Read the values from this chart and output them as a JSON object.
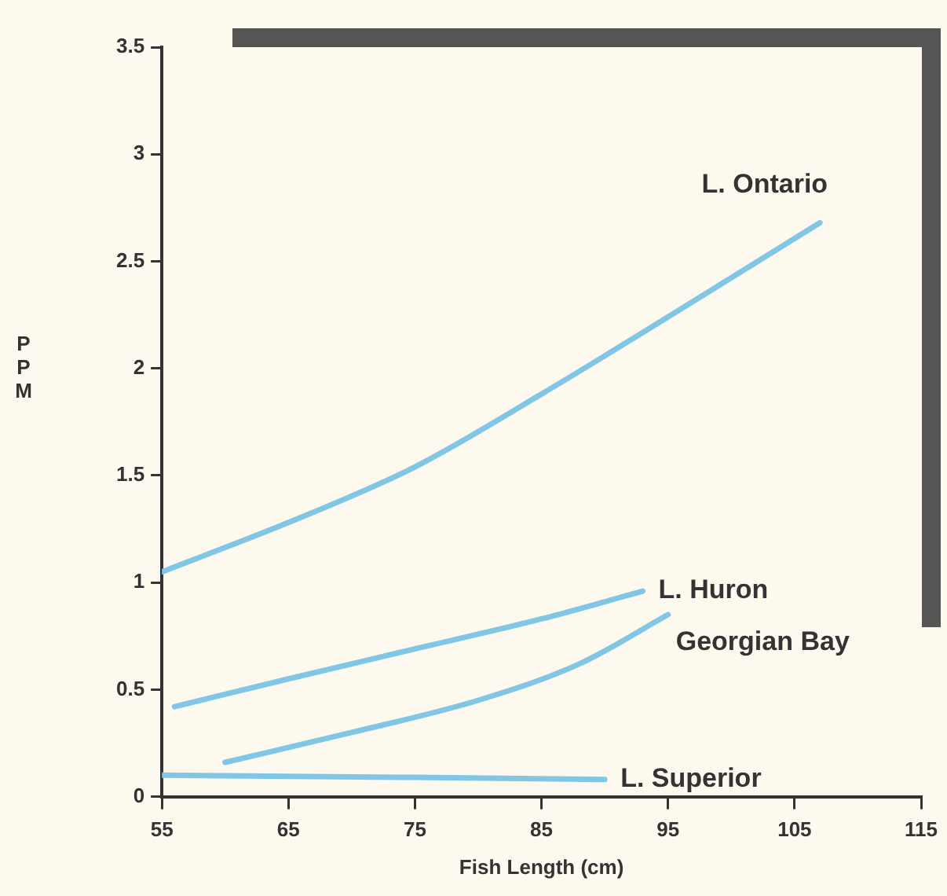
{
  "chart_data": {
    "type": "line",
    "xlabel": "Fish Length (cm)",
    "ylabel": "PPM",
    "xlim": [
      55,
      115
    ],
    "xticks": [
      55,
      65,
      75,
      85,
      95,
      105,
      115
    ],
    "ylim": [
      0,
      3.5
    ],
    "yticks": [
      0,
      0.5,
      1,
      1.5,
      2,
      2.5,
      3,
      3.5
    ],
    "grid": false,
    "legend": false,
    "marker": "none",
    "line_style": "solid",
    "series": [
      {
        "name": "L. Ontario",
        "color": "#82c6e6",
        "x": [
          55,
          65,
          75,
          85,
          95,
          107
        ],
        "values": [
          1.05,
          1.28,
          1.54,
          1.88,
          2.24,
          2.68
        ]
      },
      {
        "name": "L. Huron",
        "color": "#82c6e6",
        "x": [
          56,
          65,
          75,
          85,
          93
        ],
        "values": [
          0.42,
          0.55,
          0.69,
          0.83,
          0.96
        ]
      },
      {
        "name": "Georgian Bay",
        "color": "#82c6e6",
        "x": [
          60,
          70,
          80,
          88,
          95
        ],
        "values": [
          0.16,
          0.3,
          0.45,
          0.62,
          0.85
        ]
      },
      {
        "name": "L. Superior",
        "color": "#82c6e6",
        "x": [
          55,
          75,
          90
        ],
        "values": [
          0.1,
          0.09,
          0.08
        ]
      }
    ]
  }
}
